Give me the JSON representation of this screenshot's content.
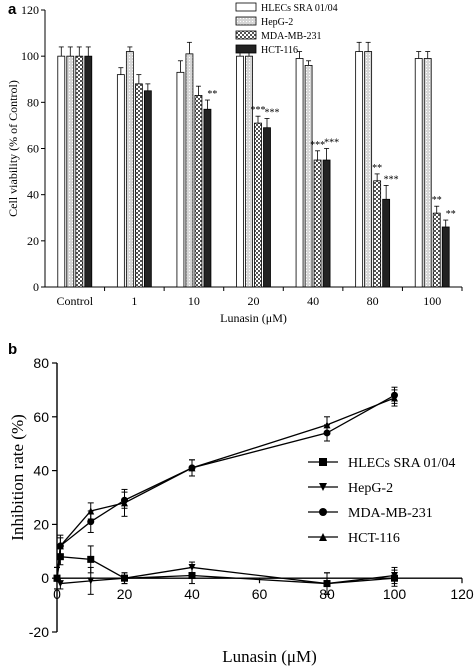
{
  "chart_data": [
    {
      "panel": "a",
      "type": "bar",
      "ylabel": "Cell viability (% of Control)",
      "xlabel": "Lunasin (μM)",
      "ylim": [
        0,
        120
      ],
      "yticks": [
        0,
        20,
        40,
        60,
        80,
        100,
        120
      ],
      "categories": [
        "Control",
        "1",
        "10",
        "20",
        "40",
        "80",
        "100"
      ],
      "legend_position": "top-right",
      "series": [
        {
          "name": "HLECs SRA 01/04",
          "pattern": "white",
          "values": [
            100,
            92,
            93,
            100,
            99,
            102,
            99
          ],
          "errors": [
            4,
            3,
            5,
            2,
            3,
            4,
            3
          ],
          "sig": [
            "",
            "",
            "",
            "",
            "",
            "",
            ""
          ]
        },
        {
          "name": "HepG-2",
          "pattern": "light",
          "values": [
            100,
            102,
            101,
            100,
            96,
            102,
            99
          ],
          "errors": [
            4,
            2,
            5,
            2,
            2,
            4,
            3
          ],
          "sig": [
            "",
            "",
            "",
            "",
            "",
            "",
            ""
          ]
        },
        {
          "name": "MDA-MB-231",
          "pattern": "checker",
          "values": [
            100,
            88,
            83,
            71,
            55,
            46,
            32
          ],
          "errors": [
            4,
            4,
            4,
            3,
            4,
            3,
            3
          ],
          "sig": [
            "",
            "",
            "",
            "***",
            "***",
            "**",
            "**"
          ]
        },
        {
          "name": "HCT-116",
          "pattern": "dark",
          "values": [
            100,
            85,
            77,
            69,
            55,
            38,
            26
          ],
          "errors": [
            4,
            3,
            4,
            4,
            5,
            6,
            3
          ],
          "sig": [
            "",
            "",
            "**",
            "***",
            "***",
            "***",
            "**"
          ]
        }
      ]
    },
    {
      "panel": "b",
      "type": "line",
      "ylabel": "Inhibition rate (%)",
      "xlabel": "Lunasin (μM)",
      "xlim": [
        0,
        120
      ],
      "ylim": [
        -20,
        80
      ],
      "xticks": [
        0,
        20,
        40,
        60,
        80,
        100,
        120
      ],
      "yticks": [
        -20,
        0,
        20,
        40,
        60,
        80
      ],
      "legend_position": "right",
      "series": [
        {
          "name": "HLECs SRA 01/04",
          "marker": "square",
          "x": [
            0,
            1,
            10,
            20,
            40,
            80,
            100
          ],
          "y": [
            0,
            8,
            7,
            0,
            1,
            -2,
            0
          ],
          "err": [
            4,
            3,
            5,
            2,
            3,
            4,
            3
          ]
        },
        {
          "name": "HepG-2",
          "marker": "triangle-down",
          "x": [
            0,
            1,
            10,
            20,
            40,
            80,
            100
          ],
          "y": [
            0,
            -2,
            -1,
            0,
            4,
            -2,
            1
          ],
          "err": [
            4,
            2,
            5,
            2,
            2,
            4,
            3
          ]
        },
        {
          "name": "MDA-MB-231",
          "marker": "circle",
          "x": [
            0,
            1,
            10,
            20,
            40,
            80,
            100
          ],
          "y": [
            0,
            12,
            21,
            29,
            41,
            54,
            68
          ],
          "err": [
            4,
            4,
            4,
            3,
            3,
            3,
            3
          ]
        },
        {
          "name": "HCT-116",
          "marker": "triangle-up",
          "x": [
            0,
            1,
            10,
            20,
            40,
            80,
            100
          ],
          "y": [
            0,
            12,
            25,
            28,
            41,
            57,
            67
          ],
          "err": [
            4,
            3,
            3,
            5,
            3,
            3,
            3
          ]
        }
      ]
    }
  ]
}
